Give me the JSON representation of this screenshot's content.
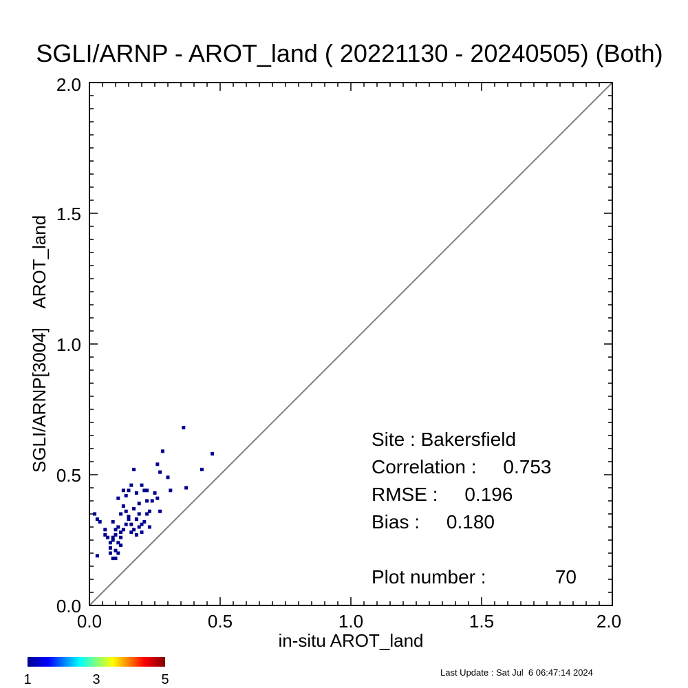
{
  "chart_data": {
    "type": "scatter",
    "title": "SGLI/ARNP - AROT_land ( 20221130 - 20240505) (Both)",
    "xlabel": "in-situ AROT_land",
    "ylabel": "SGLI/ARNP[3004]    AROT_land",
    "xlim": [
      0.0,
      2.0
    ],
    "ylim": [
      0.0,
      2.0
    ],
    "xticks": [
      "0.0",
      "0.5",
      "1.0",
      "1.5",
      "2.0"
    ],
    "yticks": [
      "0.0",
      "0.5",
      "1.0",
      "1.5",
      "2.0"
    ],
    "grid": false,
    "reference_line": "1:1",
    "points": [
      [
        0.02,
        0.35
      ],
      [
        0.03,
        0.33
      ],
      [
        0.04,
        0.32
      ],
      [
        0.03,
        0.19
      ],
      [
        0.06,
        0.29
      ],
      [
        0.07,
        0.26
      ],
      [
        0.08,
        0.24
      ],
      [
        0.08,
        0.22
      ],
      [
        0.09,
        0.18
      ],
      [
        0.1,
        0.18
      ],
      [
        0.09,
        0.26
      ],
      [
        0.1,
        0.21
      ],
      [
        0.11,
        0.2
      ],
      [
        0.11,
        0.24
      ],
      [
        0.12,
        0.23
      ],
      [
        0.1,
        0.27
      ],
      [
        0.11,
        0.3
      ],
      [
        0.12,
        0.28
      ],
      [
        0.13,
        0.29
      ],
      [
        0.14,
        0.31
      ],
      [
        0.15,
        0.33
      ],
      [
        0.16,
        0.31
      ],
      [
        0.17,
        0.29
      ],
      [
        0.18,
        0.27
      ],
      [
        0.19,
        0.3
      ],
      [
        0.2,
        0.28
      ],
      [
        0.21,
        0.32
      ],
      [
        0.22,
        0.35
      ],
      [
        0.23,
        0.3
      ],
      [
        0.24,
        0.4
      ],
      [
        0.25,
        0.43
      ],
      [
        0.26,
        0.41
      ],
      [
        0.27,
        0.36
      ],
      [
        0.12,
        0.35
      ],
      [
        0.13,
        0.38
      ],
      [
        0.14,
        0.42
      ],
      [
        0.15,
        0.44
      ],
      [
        0.16,
        0.46
      ],
      [
        0.17,
        0.52
      ],
      [
        0.18,
        0.43
      ],
      [
        0.19,
        0.39
      ],
      [
        0.2,
        0.46
      ],
      [
        0.21,
        0.44
      ],
      [
        0.22,
        0.4
      ],
      [
        0.23,
        0.36
      ],
      [
        0.11,
        0.41
      ],
      [
        0.13,
        0.44
      ],
      [
        0.15,
        0.34
      ],
      [
        0.17,
        0.37
      ],
      [
        0.19,
        0.35
      ],
      [
        0.09,
        0.32
      ],
      [
        0.1,
        0.29
      ],
      [
        0.16,
        0.28
      ],
      [
        0.2,
        0.31
      ],
      [
        0.26,
        0.54
      ],
      [
        0.27,
        0.51
      ],
      [
        0.28,
        0.59
      ],
      [
        0.3,
        0.49
      ],
      [
        0.31,
        0.44
      ],
      [
        0.36,
        0.68
      ],
      [
        0.37,
        0.45
      ],
      [
        0.43,
        0.52
      ],
      [
        0.47,
        0.58
      ],
      [
        0.09,
        0.25
      ],
      [
        0.08,
        0.2
      ],
      [
        0.12,
        0.26
      ],
      [
        0.14,
        0.36
      ],
      [
        0.18,
        0.33
      ],
      [
        0.22,
        0.44
      ],
      [
        0.06,
        0.27
      ]
    ],
    "stats": {
      "site": "Site : Bakersfield",
      "correlation": "Correlation :     0.753",
      "rmse": "RMSE :     0.196",
      "bias": "Bias :     0.180",
      "plot_number": "Plot number :",
      "plot_number_value": "70"
    },
    "colorbar": {
      "ticks": [
        "1",
        "3",
        "5"
      ],
      "colors": [
        "#00008f",
        "#0000ff",
        "#00ffff",
        "#ffff00",
        "#ff0000",
        "#800000"
      ]
    },
    "point_color": "#00008f",
    "footer": "Last Update : Sat Jul  6 06:47:14 2024"
  }
}
